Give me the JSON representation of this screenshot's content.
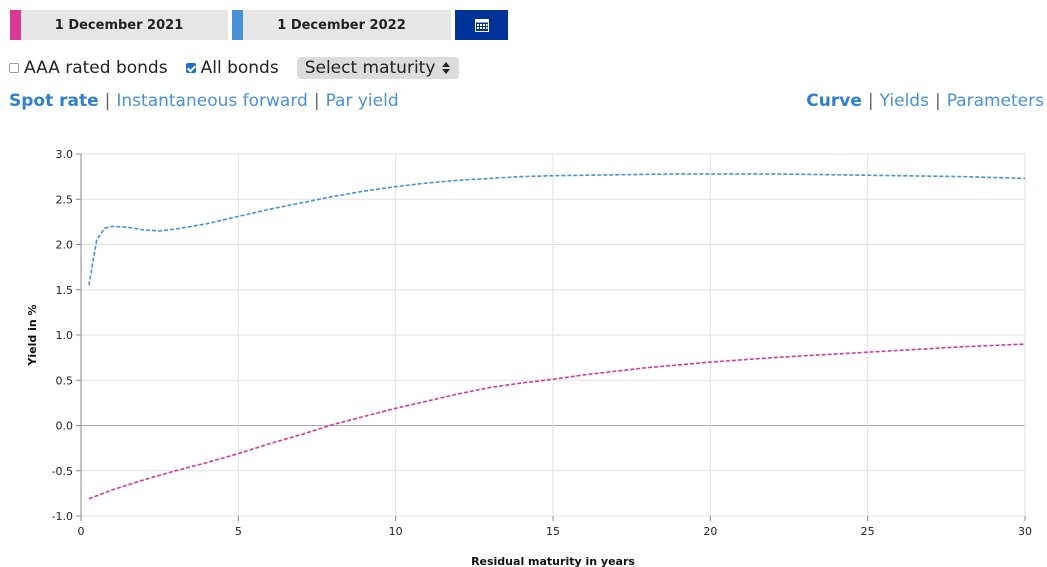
{
  "dates": {
    "first": {
      "label": "1 December 2021",
      "color": "#d63a94"
    },
    "second": {
      "label": "1 December 2022",
      "color": "#4a90d9"
    }
  },
  "calendar_button": {
    "icon": "calendar-icon",
    "color": "#003299"
  },
  "filters": {
    "aaa_label": "AAA rated bonds",
    "aaa_checked": false,
    "all_label": "All bonds",
    "all_checked": true,
    "maturity_select": "Select maturity"
  },
  "rate_tabs": [
    "Spot rate",
    "Instantaneous forward",
    "Par yield"
  ],
  "rate_active": "Spot rate",
  "view_tabs": [
    "Curve",
    "Yields",
    "Parameters"
  ],
  "view_active": "Curve",
  "chart_data": {
    "type": "line",
    "xlabel": "Residual maturity in years",
    "ylabel": "Yield in %",
    "xlim": [
      0,
      30
    ],
    "ylim": [
      -1.0,
      3.0
    ],
    "xticks": [
      "0",
      "5",
      "10",
      "15",
      "20",
      "25",
      "30"
    ],
    "yticks": [
      "-1.0",
      "-0.5",
      "0.0",
      "0.5",
      "1.0",
      "1.5",
      "2.0",
      "2.5",
      "3.0"
    ],
    "grid": true,
    "series": [
      {
        "color": "#4a90d9",
        "x": [
          0.25,
          0.5,
          0.75,
          1.0,
          1.5,
          2.0,
          2.5,
          3.0,
          4.0,
          5.0,
          6.0,
          7.0,
          8.0,
          9.0,
          10.0,
          11.0,
          12.0,
          13.0,
          14.0,
          15.0,
          17.0,
          19.0,
          20.0,
          22.0,
          24.0,
          26.0,
          28.0,
          30.0
        ],
        "values": [
          1.55,
          2.05,
          2.18,
          2.2,
          2.19,
          2.16,
          2.15,
          2.17,
          2.23,
          2.31,
          2.39,
          2.46,
          2.53,
          2.59,
          2.64,
          2.68,
          2.71,
          2.73,
          2.75,
          2.76,
          2.77,
          2.78,
          2.78,
          2.78,
          2.77,
          2.76,
          2.75,
          2.73
        ]
      },
      {
        "color": "#d63a94",
        "x": [
          0.25,
          1.0,
          2.0,
          3.0,
          4.0,
          5.0,
          6.0,
          7.0,
          8.0,
          9.0,
          10.0,
          11.0,
          12.0,
          13.0,
          14.0,
          15.0,
          16.0,
          17.0,
          18.0,
          19.0,
          20.0,
          22.0,
          24.0,
          26.0,
          28.0,
          30.0
        ],
        "values": [
          -0.81,
          -0.71,
          -0.6,
          -0.5,
          -0.41,
          -0.31,
          -0.2,
          -0.1,
          0.01,
          0.1,
          0.19,
          0.27,
          0.35,
          0.42,
          0.47,
          0.51,
          0.56,
          0.6,
          0.64,
          0.67,
          0.7,
          0.75,
          0.79,
          0.83,
          0.87,
          0.9
        ]
      }
    ]
  }
}
